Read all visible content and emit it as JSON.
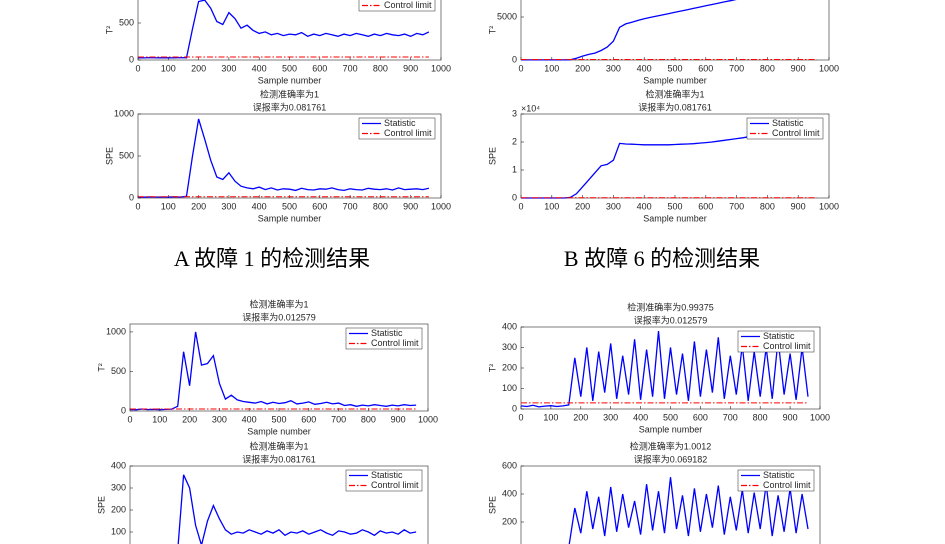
{
  "captions": [
    "A 故障 1 的检测结果",
    "B 故障 6 的检测结果"
  ],
  "chart_data": [
    {
      "type": "line",
      "ylabel": "T²",
      "xlabel": "Sample number",
      "xlim": [
        0,
        1000
      ],
      "xticks": [
        0,
        100,
        200,
        300,
        400,
        500,
        600,
        700,
        800,
        900,
        1000
      ],
      "ylim": [
        0,
        1000
      ],
      "yticks": [
        0,
        500
      ],
      "x": [
        0,
        20,
        40,
        60,
        80,
        100,
        120,
        140,
        160,
        180,
        200,
        220,
        240,
        260,
        280,
        300,
        320,
        340,
        360,
        380,
        400,
        420,
        440,
        460,
        480,
        500,
        520,
        540,
        560,
        580,
        600,
        620,
        640,
        660,
        680,
        700,
        720,
        740,
        760,
        780,
        800,
        820,
        840,
        860,
        880,
        900,
        920,
        940,
        960
      ],
      "series": [
        {
          "name": "Statistic",
          "color": "#0000ff",
          "values": [
            30,
            28,
            32,
            29,
            31,
            30,
            28,
            33,
            30,
            420,
            790,
            810,
            700,
            520,
            480,
            640,
            560,
            430,
            470,
            400,
            360,
            380,
            340,
            360,
            330,
            350,
            340,
            370,
            320,
            350,
            330,
            360,
            340,
            320,
            350,
            330,
            360,
            340,
            320,
            350,
            330,
            360,
            340,
            330,
            350,
            320,
            360,
            340,
            380
          ]
        },
        {
          "name": "Control limit",
          "color": "#ff0000",
          "style": "dashdot",
          "x": [
            0,
            960
          ],
          "values": [
            40,
            40
          ]
        }
      ]
    },
    {
      "type": "line",
      "ylabel": "T²",
      "xlabel": "Sample number",
      "xlim": [
        0,
        1000
      ],
      "xticks": [
        0,
        100,
        200,
        300,
        400,
        500,
        600,
        700,
        800,
        900,
        1000
      ],
      "ylim": [
        0,
        10000
      ],
      "yticks": [
        0,
        5000
      ],
      "x": [
        0,
        20,
        40,
        60,
        80,
        100,
        120,
        140,
        160,
        180,
        200,
        220,
        240,
        260,
        280,
        300,
        320,
        340,
        360,
        380,
        400,
        420,
        440,
        460,
        480,
        500,
        520,
        540,
        560,
        580,
        600,
        620,
        640,
        660,
        680,
        700,
        720,
        740,
        760,
        780,
        800,
        820,
        840,
        860,
        880,
        900,
        920,
        940,
        960
      ],
      "series": [
        {
          "name": "Statistic",
          "color": "#0000ff",
          "values": [
            10,
            12,
            11,
            13,
            10,
            12,
            11,
            14,
            30,
            200,
            450,
            650,
            800,
            1100,
            1500,
            2200,
            3800,
            4200,
            4400,
            4600,
            4800,
            4950,
            5100,
            5250,
            5400,
            5550,
            5700,
            5850,
            6000,
            6150,
            6300,
            6450,
            6600,
            6750,
            6900,
            7050,
            7200,
            7350,
            7500,
            7650,
            7800,
            7950,
            8100,
            8250,
            8400,
            8550,
            8700,
            8850,
            9000
          ]
        },
        {
          "name": "Control limit",
          "color": "#ff0000",
          "style": "dashdot",
          "x": [
            0,
            960
          ],
          "values": [
            60,
            60
          ]
        }
      ]
    },
    {
      "type": "line",
      "title_lines": [
        "检测准确率为1",
        "误报率为0.081761"
      ],
      "ylabel": "SPE",
      "xlabel": "Sample number",
      "xlim": [
        0,
        1000
      ],
      "xticks": [
        0,
        100,
        200,
        300,
        400,
        500,
        600,
        700,
        800,
        900,
        1000
      ],
      "ylim": [
        0,
        1000
      ],
      "yticks": [
        0,
        500,
        1000
      ],
      "x": [
        0,
        20,
        40,
        60,
        80,
        100,
        120,
        140,
        160,
        180,
        200,
        220,
        240,
        260,
        280,
        300,
        320,
        340,
        360,
        380,
        400,
        420,
        440,
        460,
        480,
        500,
        520,
        540,
        560,
        580,
        600,
        620,
        640,
        660,
        680,
        700,
        720,
        740,
        760,
        780,
        800,
        820,
        840,
        860,
        880,
        900,
        920,
        940,
        960
      ],
      "series": [
        {
          "name": "Statistic",
          "color": "#0000ff",
          "values": [
            12,
            10,
            13,
            11,
            12,
            10,
            14,
            11,
            20,
            500,
            940,
            700,
            450,
            250,
            220,
            300,
            200,
            140,
            120,
            110,
            130,
            100,
            120,
            95,
            110,
            105,
            90,
            115,
            100,
            95,
            110,
            105,
            120,
            100,
            90,
            110,
            100,
            95,
            115,
            105,
            100,
            110,
            95,
            120,
            100,
            105,
            110,
            100,
            115
          ]
        },
        {
          "name": "Control limit",
          "color": "#ff0000",
          "style": "dashdot",
          "x": [
            0,
            960
          ],
          "values": [
            15,
            15
          ]
        }
      ]
    },
    {
      "type": "line",
      "title_lines": [
        "检测准确率为1",
        "误报率为0.081761"
      ],
      "ylabel": "SPE",
      "xlabel": "Sample number",
      "y_exponent": "×10⁴",
      "xlim": [
        0,
        1000
      ],
      "xticks": [
        0,
        100,
        200,
        300,
        400,
        500,
        600,
        700,
        800,
        900,
        1000
      ],
      "ylim": [
        0,
        30000
      ],
      "yticks": [
        {
          "value": 0,
          "label": "0"
        },
        {
          "value": 10000,
          "label": "1"
        },
        {
          "value": 20000,
          "label": "2"
        },
        {
          "value": 30000,
          "label": "3"
        }
      ],
      "x": [
        0,
        20,
        40,
        60,
        80,
        100,
        120,
        140,
        160,
        180,
        200,
        220,
        240,
        260,
        280,
        300,
        320,
        340,
        360,
        380,
        400,
        420,
        440,
        460,
        480,
        500,
        520,
        540,
        560,
        580,
        600,
        620,
        640,
        660,
        680,
        700,
        720,
        740,
        760,
        780,
        800,
        820,
        840,
        860,
        880,
        900,
        920,
        940,
        960
      ],
      "series": [
        {
          "name": "Statistic",
          "color": "#0000ff",
          "values": [
            0,
            0,
            0,
            0,
            0,
            0,
            0,
            0,
            200,
            1500,
            4000,
            6500,
            9000,
            11500,
            12000,
            13500,
            19500,
            19300,
            19200,
            19100,
            19000,
            19000,
            19000,
            19000,
            19000,
            19100,
            19200,
            19300,
            19400,
            19600,
            19800,
            20000,
            20300,
            20600,
            20900,
            21200,
            21500,
            21900,
            22300,
            22700,
            23100,
            23500,
            24000,
            24500,
            25000,
            25600,
            26200,
            26900,
            27600
          ]
        },
        {
          "name": "Control limit",
          "color": "#ff0000",
          "style": "dashdot",
          "x": [
            0,
            960
          ],
          "values": [
            100,
            100
          ]
        }
      ]
    },
    {
      "type": "line",
      "title_lines": [
        "检测准确率为1",
        "误报率为0.012579"
      ],
      "ylabel": "T²",
      "xlabel": "Sample number",
      "xlim": [
        0,
        1000
      ],
      "xticks": [
        0,
        100,
        200,
        300,
        400,
        500,
        600,
        700,
        800,
        900,
        1000
      ],
      "ylim": [
        0,
        1100
      ],
      "yticks": [
        0,
        500,
        1000
      ],
      "x": [
        0,
        20,
        40,
        60,
        80,
        100,
        120,
        140,
        160,
        180,
        200,
        220,
        240,
        260,
        280,
        300,
        320,
        340,
        360,
        380,
        400,
        420,
        440,
        460,
        480,
        500,
        520,
        540,
        560,
        580,
        600,
        620,
        640,
        660,
        680,
        700,
        720,
        740,
        760,
        780,
        800,
        820,
        840,
        860,
        880,
        900,
        920,
        940,
        960
      ],
      "series": [
        {
          "name": "Statistic",
          "color": "#0000ff",
          "values": [
            20,
            15,
            25,
            18,
            22,
            16,
            20,
            24,
            60,
            750,
            320,
            1000,
            580,
            600,
            700,
            350,
            150,
            200,
            140,
            120,
            110,
            100,
            120,
            90,
            110,
            95,
            105,
            130,
            90,
            100,
            115,
            85,
            95,
            110,
            90,
            100,
            70,
            80,
            60,
            75,
            65,
            80,
            70,
            60,
            75,
            65,
            80,
            70,
            75
          ]
        },
        {
          "name": "Control limit",
          "color": "#ff0000",
          "style": "dashdot",
          "x": [
            0,
            960
          ],
          "values": [
            25,
            25
          ]
        }
      ]
    },
    {
      "type": "line",
      "title_lines": [
        "检测准确率为1",
        "误报率为0.081761"
      ],
      "ylabel": "SPE",
      "xlim": [
        0,
        1000
      ],
      "ylim": [
        0,
        400
      ],
      "yticks": [
        100,
        200,
        300,
        400
      ],
      "x": [
        0,
        20,
        40,
        60,
        80,
        100,
        120,
        140,
        160,
        180,
        200,
        220,
        240,
        260,
        280,
        300,
        320,
        340,
        360,
        380,
        400,
        420,
        440,
        460,
        480,
        500,
        520,
        540,
        560,
        580,
        600,
        620,
        640,
        660,
        680,
        700,
        720,
        740,
        760,
        780,
        800,
        820,
        840,
        860,
        880,
        900,
        920,
        940,
        960
      ],
      "series": [
        {
          "name": "Statistic",
          "color": "#0000ff",
          "values": [
            10,
            8,
            12,
            9,
            11,
            10,
            9,
            12,
            15,
            360,
            300,
            130,
            40,
            150,
            220,
            160,
            110,
            90,
            100,
            95,
            110,
            100,
            90,
            105,
            95,
            110,
            85,
            100,
            95,
            105,
            90,
            100,
            110,
            95,
            85,
            105,
            100,
            90,
            95,
            110,
            100,
            85,
            105,
            95,
            100,
            90,
            110,
            95,
            100
          ]
        },
        {
          "name": "Control limit",
          "color": "#ff0000",
          "style": "dashdot",
          "x": [
            0,
            960
          ],
          "values": [
            20,
            20
          ]
        }
      ]
    },
    {
      "type": "line",
      "title_lines": [
        "检测准确率为0.99375",
        "误报率为0.012579"
      ],
      "ylabel": "T²",
      "xlabel": "Sample number",
      "xlim": [
        0,
        1000
      ],
      "xticks": [
        0,
        100,
        200,
        300,
        400,
        500,
        600,
        700,
        800,
        900,
        1000
      ],
      "ylim": [
        0,
        400
      ],
      "yticks": [
        0,
        100,
        200,
        300,
        400
      ],
      "x": [
        0,
        20,
        40,
        60,
        80,
        100,
        120,
        140,
        160,
        180,
        200,
        220,
        240,
        260,
        280,
        300,
        320,
        340,
        360,
        380,
        400,
        420,
        440,
        460,
        480,
        500,
        520,
        540,
        560,
        580,
        600,
        620,
        640,
        660,
        680,
        700,
        720,
        740,
        760,
        780,
        800,
        820,
        840,
        860,
        880,
        900,
        920,
        940,
        960
      ],
      "series": [
        {
          "name": "Statistic",
          "color": "#0000ff",
          "values": [
            15,
            12,
            18,
            10,
            14,
            16,
            12,
            15,
            20,
            250,
            60,
            300,
            40,
            280,
            80,
            320,
            50,
            260,
            70,
            340,
            45,
            290,
            60,
            380,
            50,
            300,
            70,
            270,
            40,
            330,
            60,
            290,
            80,
            350,
            50,
            260,
            70,
            310,
            40,
            280,
            60,
            300,
            50,
            340,
            70,
            270,
            45,
            300,
            60
          ]
        },
        {
          "name": "Control limit",
          "color": "#ff0000",
          "style": "dashdot",
          "x": [
            0,
            960
          ],
          "values": [
            30,
            30
          ]
        }
      ]
    },
    {
      "type": "line",
      "title_lines": [
        "检测准确率为1.0012",
        "误报率为0.069182"
      ],
      "ylabel": "SPE",
      "xlim": [
        0,
        1000
      ],
      "ylim": [
        0,
        600
      ],
      "yticks": [
        200,
        400,
        600
      ],
      "x": [
        0,
        20,
        40,
        60,
        80,
        100,
        120,
        140,
        160,
        180,
        200,
        220,
        240,
        260,
        280,
        300,
        320,
        340,
        360,
        380,
        400,
        420,
        440,
        460,
        480,
        500,
        520,
        540,
        560,
        580,
        600,
        620,
        640,
        660,
        680,
        700,
        720,
        740,
        760,
        780,
        800,
        820,
        840,
        860,
        880,
        900,
        920,
        940,
        960
      ],
      "series": [
        {
          "name": "Statistic",
          "color": "#0000ff",
          "values": [
            0,
            0,
            0,
            0,
            0,
            0,
            0,
            0,
            20,
            300,
            120,
            420,
            150,
            380,
            100,
            450,
            130,
            400,
            160,
            350,
            110,
            470,
            140,
            420,
            120,
            520,
            150,
            390,
            100,
            440,
            130,
            400,
            160,
            460,
            110,
            380,
            140,
            430,
            120,
            410,
            150,
            470,
            100,
            390,
            130,
            440,
            120,
            400,
            150
          ]
        },
        {
          "name": "Control limit",
          "color": "#ff0000",
          "style": "dashdot",
          "x": [
            0,
            960
          ],
          "values": [
            20,
            20
          ]
        }
      ]
    }
  ]
}
